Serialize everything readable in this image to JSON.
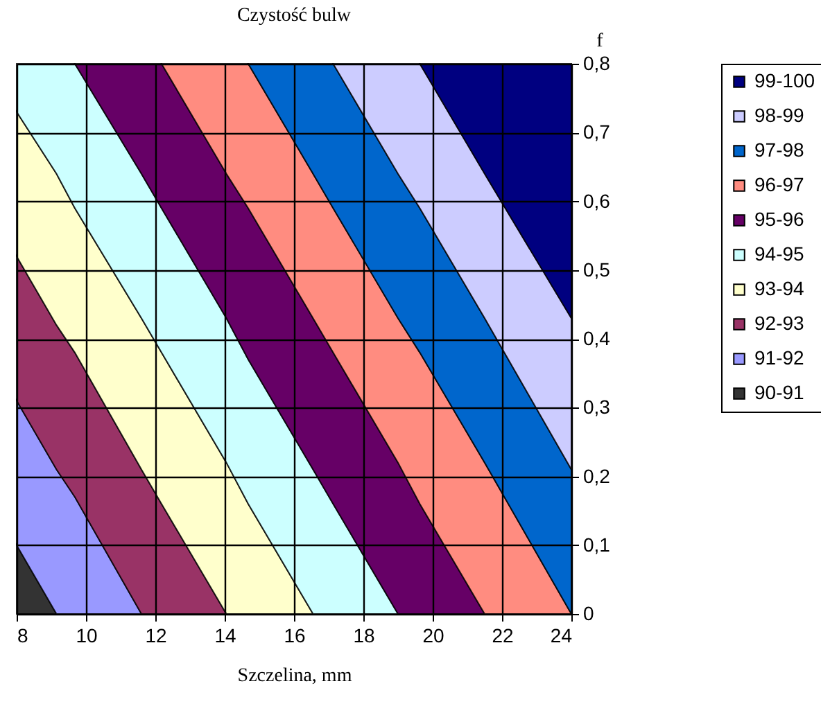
{
  "chart_data": {
    "type": "area",
    "stacked": true,
    "title": "Czystość bulw",
    "xlabel": "Szczelina, mm",
    "ylabel": "f",
    "x": [
      8,
      9.15,
      9.68,
      11.6,
      12.18,
      14.05,
      14.68,
      16.55,
      17.13,
      19.0,
      19.63,
      21.5,
      24
    ],
    "series": [
      {
        "name": "90-91",
        "color": "#333333",
        "values": [
          0.1,
          0,
          null,
          null,
          null,
          null,
          null,
          null,
          null,
          null,
          null,
          null,
          null
        ]
      },
      {
        "name": "91-92",
        "color": "#9999ff",
        "values": [
          0.21,
          0.21,
          0.17,
          0,
          null,
          null,
          null,
          null,
          null,
          null,
          null,
          null,
          null
        ]
      },
      {
        "name": "92-93",
        "color": "#993366",
        "values": [
          0.21,
          0.21,
          0.21,
          0.21,
          0.16,
          0,
          null,
          null,
          null,
          null,
          null,
          null,
          null
        ]
      },
      {
        "name": "93-94",
        "color": "#ffffcc",
        "values": [
          0.21,
          0.22,
          0.21,
          0.22,
          0.22,
          0.22,
          0.16,
          0,
          null,
          null,
          null,
          null,
          null
        ]
      },
      {
        "name": "94-95",
        "color": "#ccffff",
        "values": [
          0.07,
          0.16,
          0.21,
          0.21,
          0.21,
          0.21,
          0.21,
          0.21,
          0.16,
          0,
          null,
          null,
          null
        ]
      },
      {
        "name": "95-96",
        "color": "#660066",
        "values": [
          null,
          null,
          0,
          0.16,
          0.21,
          0.21,
          0.22,
          0.22,
          0.22,
          0.22,
          0.16,
          0,
          null
        ]
      },
      {
        "name": "96-97",
        "color": "#ff8c80",
        "values": [
          null,
          null,
          null,
          null,
          0,
          0.16,
          0.21,
          0.21,
          0.21,
          0.21,
          0.22,
          0.22,
          0
        ]
      },
      {
        "name": "97-98",
        "color": "#0066cc",
        "values": [
          null,
          null,
          null,
          null,
          null,
          null,
          0,
          0.16,
          0.21,
          0.21,
          0.21,
          0.21,
          0.21
        ]
      },
      {
        "name": "98-99",
        "color": "#ccccff",
        "values": [
          null,
          null,
          null,
          null,
          null,
          null,
          null,
          null,
          0,
          0.16,
          0.21,
          0.21,
          0.22
        ]
      },
      {
        "name": "99-100",
        "color": "#000080",
        "values": [
          null,
          null,
          null,
          null,
          null,
          null,
          null,
          null,
          null,
          null,
          0,
          0.16,
          0.37
        ]
      }
    ],
    "xlim": [
      8,
      24
    ],
    "xticks": [
      8,
      10,
      12,
      14,
      16,
      18,
      20,
      22,
      24
    ],
    "ylim": [
      0,
      0.8
    ],
    "yticks": [
      0,
      {
        "value": 0.1,
        "label": "0,1"
      },
      {
        "value": 0.2,
        "label": "0,2"
      },
      {
        "value": 0.3,
        "label": "0,3"
      },
      {
        "value": 0.4,
        "label": "0,4"
      },
      {
        "value": 0.5,
        "label": "0,5"
      },
      {
        "value": 0.6,
        "label": "0,6"
      },
      {
        "value": 0.7,
        "label": "0,7"
      },
      {
        "value": 0.8,
        "label": "0,8"
      }
    ],
    "grid": true,
    "legend": "right"
  }
}
